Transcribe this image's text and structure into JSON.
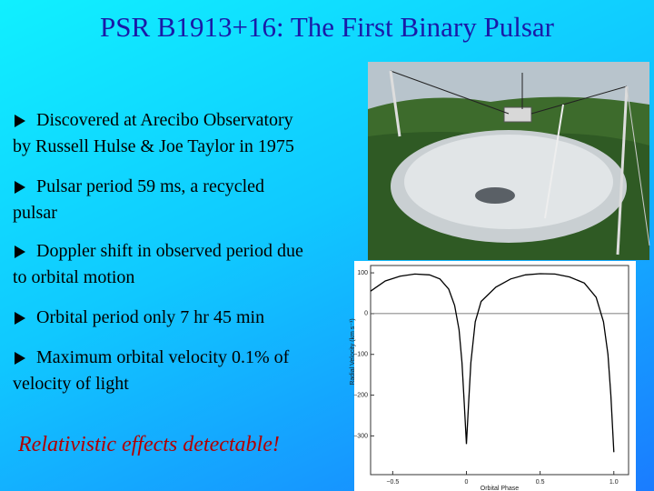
{
  "slide": {
    "title": "PSR B1913+16: The First Binary Pulsar",
    "bullets": [
      {
        "lines": [
          "Discovered at Arecibo Observatory",
          "by Russell Hulse & Joe Taylor in 1975"
        ]
      },
      {
        "lines": [
          "Pulsar period 59 ms, a recycled",
          "pulsar"
        ]
      },
      {
        "lines": [
          "Doppler shift in observed period due",
          "to orbital motion"
        ]
      },
      {
        "lines": [
          "Orbital period only 7 hr 45 min"
        ]
      },
      {
        "lines": [
          "Maximum orbital velocity 0.1% of",
          "velocity of light"
        ]
      }
    ],
    "conclusion": "Relativistic effects detectable!"
  },
  "chart_data": {
    "type": "line",
    "x_label": "Orbital Phase",
    "y_label": "Radial Velocity (km s⁻¹)",
    "x": [
      -0.65,
      -0.55,
      -0.45,
      -0.35,
      -0.25,
      -0.18,
      -0.12,
      -0.08,
      -0.05,
      -0.03,
      -0.015,
      0,
      0.015,
      0.03,
      0.06,
      0.1,
      0.2,
      0.3,
      0.4,
      0.5,
      0.6,
      0.7,
      0.8,
      0.88,
      0.93,
      0.96,
      0.98,
      1.0
    ],
    "values": [
      55,
      80,
      92,
      97,
      95,
      85,
      60,
      20,
      -40,
      -120,
      -220,
      -320,
      -220,
      -120,
      -20,
      30,
      65,
      85,
      95,
      98,
      97,
      90,
      75,
      40,
      -20,
      -100,
      -200,
      -340
    ],
    "color": "#000000",
    "xlim": [
      -0.65,
      1.1
    ],
    "ylim": [
      -395,
      118
    ],
    "xticks": [
      {
        "value": -0.5,
        "label": "−0.5"
      },
      0,
      0.5,
      {
        "value": 1,
        "label": "1.0"
      }
    ],
    "yticks": [
      100,
      0,
      {
        "value": -100,
        "label": "−100"
      },
      {
        "value": -200,
        "label": "−200"
      },
      {
        "value": -300,
        "label": "−300"
      }
    ],
    "zero_line": true
  }
}
